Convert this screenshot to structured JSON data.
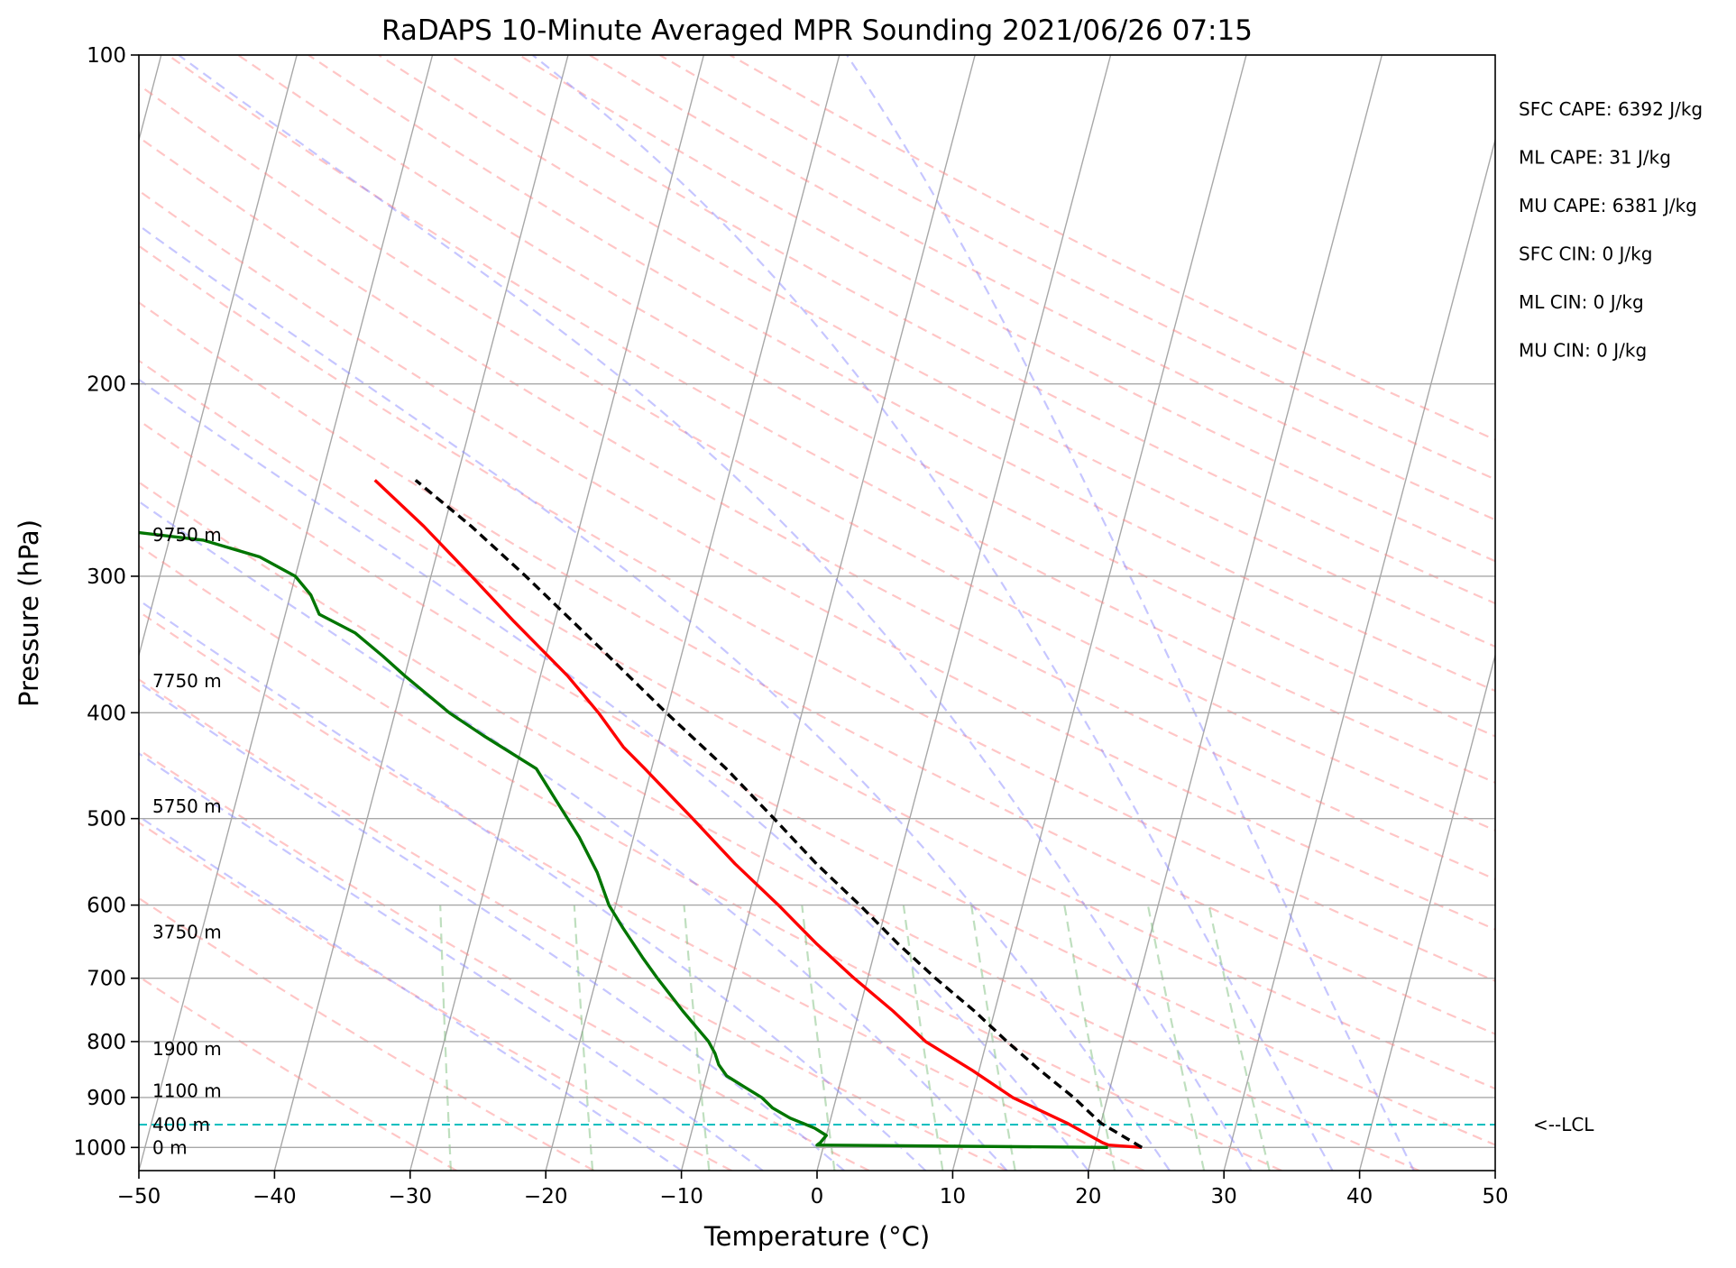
{
  "chart_data": {
    "type": "line",
    "title": "RaDAPS 10-Minute Averaged MPR Sounding 2021/06/26 07:15",
    "xlabel": "Temperature (°C)",
    "ylabel": "Pressure (hPa)",
    "xlim": [
      -50,
      50
    ],
    "ylim": [
      1050,
      100
    ],
    "y_scale": "log",
    "x_ticks": [
      -50,
      -40,
      -30,
      -20,
      -10,
      0,
      10,
      20,
      30,
      40,
      50
    ],
    "x_tick_labels": [
      "−50",
      "−40",
      "−30",
      "−20",
      "−10",
      "0",
      "10",
      "20",
      "30",
      "40",
      "50"
    ],
    "y_ticks": [
      100,
      200,
      300,
      400,
      500,
      600,
      700,
      800,
      900,
      1000
    ],
    "y_tick_labels": [
      "100",
      "200",
      "300",
      "400",
      "500",
      "600",
      "700",
      "800",
      "900",
      "1000"
    ],
    "grid": true,
    "series": [
      {
        "color": "#ff0000",
        "points": [
          [
            1000,
            23.5
          ],
          [
            995,
            21.0
          ],
          [
            990,
            20.5
          ],
          [
            950,
            17.5
          ],
          [
            900,
            13.0
          ],
          [
            850,
            9.5
          ],
          [
            800,
            5.5
          ],
          [
            750,
            2.5
          ],
          [
            700,
            -1.0
          ],
          [
            650,
            -4.5
          ],
          [
            600,
            -8.0
          ],
          [
            550,
            -12.0
          ],
          [
            500,
            -16.0
          ],
          [
            450,
            -20.5
          ],
          [
            430,
            -22.5
          ],
          [
            400,
            -25.0
          ],
          [
            370,
            -28.0
          ],
          [
            330,
            -33.0
          ],
          [
            300,
            -37.0
          ],
          [
            270,
            -41.5
          ],
          [
            245,
            -46.0
          ]
        ]
      },
      {
        "color": "#007500",
        "points": [
          [
            1000,
            21.0
          ],
          [
            995,
            -0.5
          ],
          [
            990,
            -0.3
          ],
          [
            975,
            0.0
          ],
          [
            960,
            -1.0
          ],
          [
            940,
            -3.0
          ],
          [
            920,
            -4.5
          ],
          [
            900,
            -5.5
          ],
          [
            880,
            -7.0
          ],
          [
            860,
            -8.5
          ],
          [
            840,
            -9.3
          ],
          [
            820,
            -9.8
          ],
          [
            800,
            -10.5
          ],
          [
            750,
            -13.0
          ],
          [
            700,
            -15.5
          ],
          [
            670,
            -17.0
          ],
          [
            630,
            -19.0
          ],
          [
            600,
            -20.5
          ],
          [
            560,
            -22.0
          ],
          [
            520,
            -24.0
          ],
          [
            480,
            -26.5
          ],
          [
            450,
            -28.5
          ],
          [
            420,
            -33.0
          ],
          [
            400,
            -36.0
          ],
          [
            370,
            -40.0
          ],
          [
            355,
            -42.0
          ],
          [
            338,
            -44.5
          ],
          [
            325,
            -47.5
          ],
          [
            312,
            -48.5
          ],
          [
            300,
            -50.0
          ],
          [
            288,
            -53.0
          ],
          [
            278,
            -57.5
          ],
          [
            270,
            -66.5
          ],
          [
            262,
            -75.0
          ],
          [
            248,
            -84.0
          ]
        ]
      },
      {
        "color": "#000000",
        "dashed": true,
        "points": [
          [
            1000,
            23.5
          ],
          [
            950,
            20.0
          ],
          [
            900,
            17.5
          ],
          [
            850,
            14.5
          ],
          [
            800,
            11.5
          ],
          [
            750,
            8.5
          ],
          [
            700,
            5.0
          ],
          [
            650,
            1.5
          ],
          [
            600,
            -2.0
          ],
          [
            550,
            -6.0
          ],
          [
            500,
            -10.0
          ],
          [
            450,
            -14.5
          ],
          [
            400,
            -20.0
          ],
          [
            350,
            -26.0
          ],
          [
            300,
            -33.0
          ],
          [
            270,
            -38.0
          ],
          [
            245,
            -43.0
          ]
        ]
      }
    ],
    "lcl": {
      "pressure": 953,
      "label": "<--LCL"
    },
    "height_labels": [
      {
        "pressure": 1000,
        "label": "0 m"
      },
      {
        "pressure": 953,
        "label": "400 m"
      },
      {
        "pressure": 887,
        "label": "1100 m"
      },
      {
        "pressure": 812,
        "label": "1900 m"
      },
      {
        "pressure": 635,
        "label": "3750 m"
      },
      {
        "pressure": 487,
        "label": "5750 m"
      },
      {
        "pressure": 374,
        "label": "7750 m"
      },
      {
        "pressure": 275,
        "label": "9750 m"
      }
    ],
    "indices": [
      "SFC CAPE: 6392 J/kg",
      "ML CAPE: 31 J/kg",
      "MU CAPE: 6381 J/kg",
      "SFC CIN: 0 J/kg",
      "ML CIN: 0 J/kg",
      "MU CIN: 0 J/kg"
    ],
    "colors": {
      "isotherm": "#a8a8a8",
      "dry_adiabat": "#ff8080",
      "moist_adiabat": "#8080ff",
      "mixing_ratio": "#80c080",
      "lcl_line": "#00bfbf"
    }
  }
}
